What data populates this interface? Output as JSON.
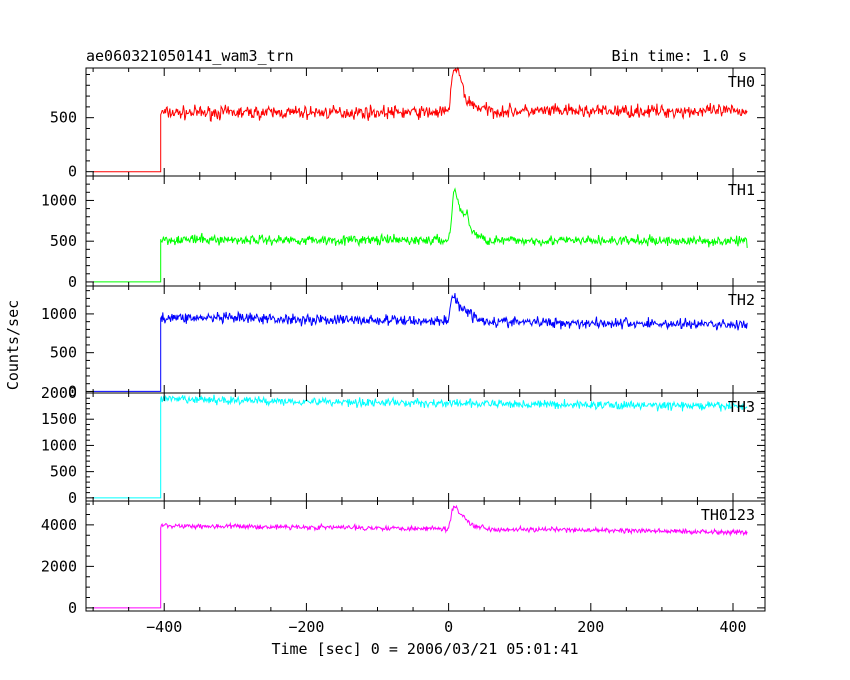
{
  "header": {
    "title": "ae060321050141_wam3_trn",
    "bin_time": "Bin time: 1.0 s"
  },
  "chart_data": {
    "type": "line",
    "xlabel": "Time [sec] 0 = 2006/03/21 05:01:41",
    "ylabel": "Counts/sec",
    "xlim": [
      -510,
      445
    ],
    "x_ticks": [
      -400,
      -200,
      0,
      200,
      400
    ],
    "x_tick_labels": [
      "−400",
      "−200",
      "0",
      "200",
      "400"
    ],
    "x_minor_step": 50,
    "panels": [
      {
        "name": "TH0",
        "color": "#ff0000",
        "ylim": [
          -40,
          960
        ],
        "y_ticks": [
          0,
          500
        ],
        "y_tick_labels": [
          "0",
          "500"
        ],
        "y_minor_step": 100,
        "pre_level": 0,
        "step_time": -405,
        "baseline": [
          [
            -405,
            545
          ],
          [
            0,
            550
          ],
          [
            420,
            550
          ]
        ],
        "noise": 30,
        "burst": [
          [
            0,
            0
          ],
          [
            5,
            350
          ],
          [
            12,
            400
          ],
          [
            18,
            280
          ],
          [
            25,
            110
          ],
          [
            40,
            50
          ],
          [
            60,
            10
          ]
        ]
      },
      {
        "name": "TH1",
        "color": "#00ff00",
        "ylim": [
          -50,
          1300
        ],
        "y_ticks": [
          0,
          500,
          1000
        ],
        "y_tick_labels": [
          "0",
          "500",
          "1000"
        ],
        "y_minor_step": 100,
        "pre_level": 0,
        "step_time": -405,
        "baseline": [
          [
            -405,
            520
          ],
          [
            0,
            510
          ],
          [
            420,
            500
          ]
        ],
        "noise": 30,
        "burst": [
          [
            0,
            0
          ],
          [
            3,
            200
          ],
          [
            8,
            650
          ],
          [
            14,
            450
          ],
          [
            20,
            300
          ],
          [
            26,
            350
          ],
          [
            32,
            120
          ],
          [
            45,
            30
          ],
          [
            60,
            0
          ]
        ]
      },
      {
        "name": "TH2",
        "color": "#0000ff",
        "ylim": [
          -20,
          1360
        ],
        "y_ticks": [
          0,
          500,
          1000
        ],
        "y_tick_labels": [
          "0",
          "500",
          "1000"
        ],
        "y_minor_step": 100,
        "pre_level": 0,
        "step_time": -405,
        "baseline": [
          [
            -405,
            955
          ],
          [
            0,
            905
          ],
          [
            420,
            860
          ]
        ],
        "noise": 35,
        "burst": [
          [
            0,
            0
          ],
          [
            4,
            300
          ],
          [
            8,
            350
          ],
          [
            15,
            180
          ],
          [
            22,
            180
          ],
          [
            35,
            60
          ],
          [
            60,
            0
          ]
        ]
      },
      {
        "name": "TH3",
        "color": "#00ffff",
        "ylim": [
          -60,
          2000
        ],
        "y_ticks": [
          0,
          500,
          1000,
          1500,
          2000
        ],
        "y_tick_labels": [
          "0",
          "500",
          "1000",
          "1500",
          "2000"
        ],
        "y_minor_step": 100,
        "pre_level": 0,
        "step_time": -405,
        "baseline": [
          [
            -405,
            1880
          ],
          [
            0,
            1800
          ],
          [
            420,
            1745
          ]
        ],
        "noise": 40,
        "burst": []
      },
      {
        "name": "TH0123",
        "color": "#ff00ff",
        "ylim": [
          -150,
          5150
        ],
        "y_ticks": [
          0,
          2000,
          4000
        ],
        "y_tick_labels": [
          "0",
          "2000",
          "4000"
        ],
        "y_minor_step": 500,
        "pre_level": 0,
        "step_time": -405,
        "baseline": [
          [
            -405,
            3960
          ],
          [
            0,
            3820
          ],
          [
            420,
            3650
          ]
        ],
        "noise": 60,
        "burst": [
          [
            0,
            0
          ],
          [
            5,
            900
          ],
          [
            10,
            1100
          ],
          [
            16,
            700
          ],
          [
            22,
            600
          ],
          [
            30,
            250
          ],
          [
            45,
            80
          ],
          [
            60,
            0
          ]
        ]
      }
    ]
  }
}
